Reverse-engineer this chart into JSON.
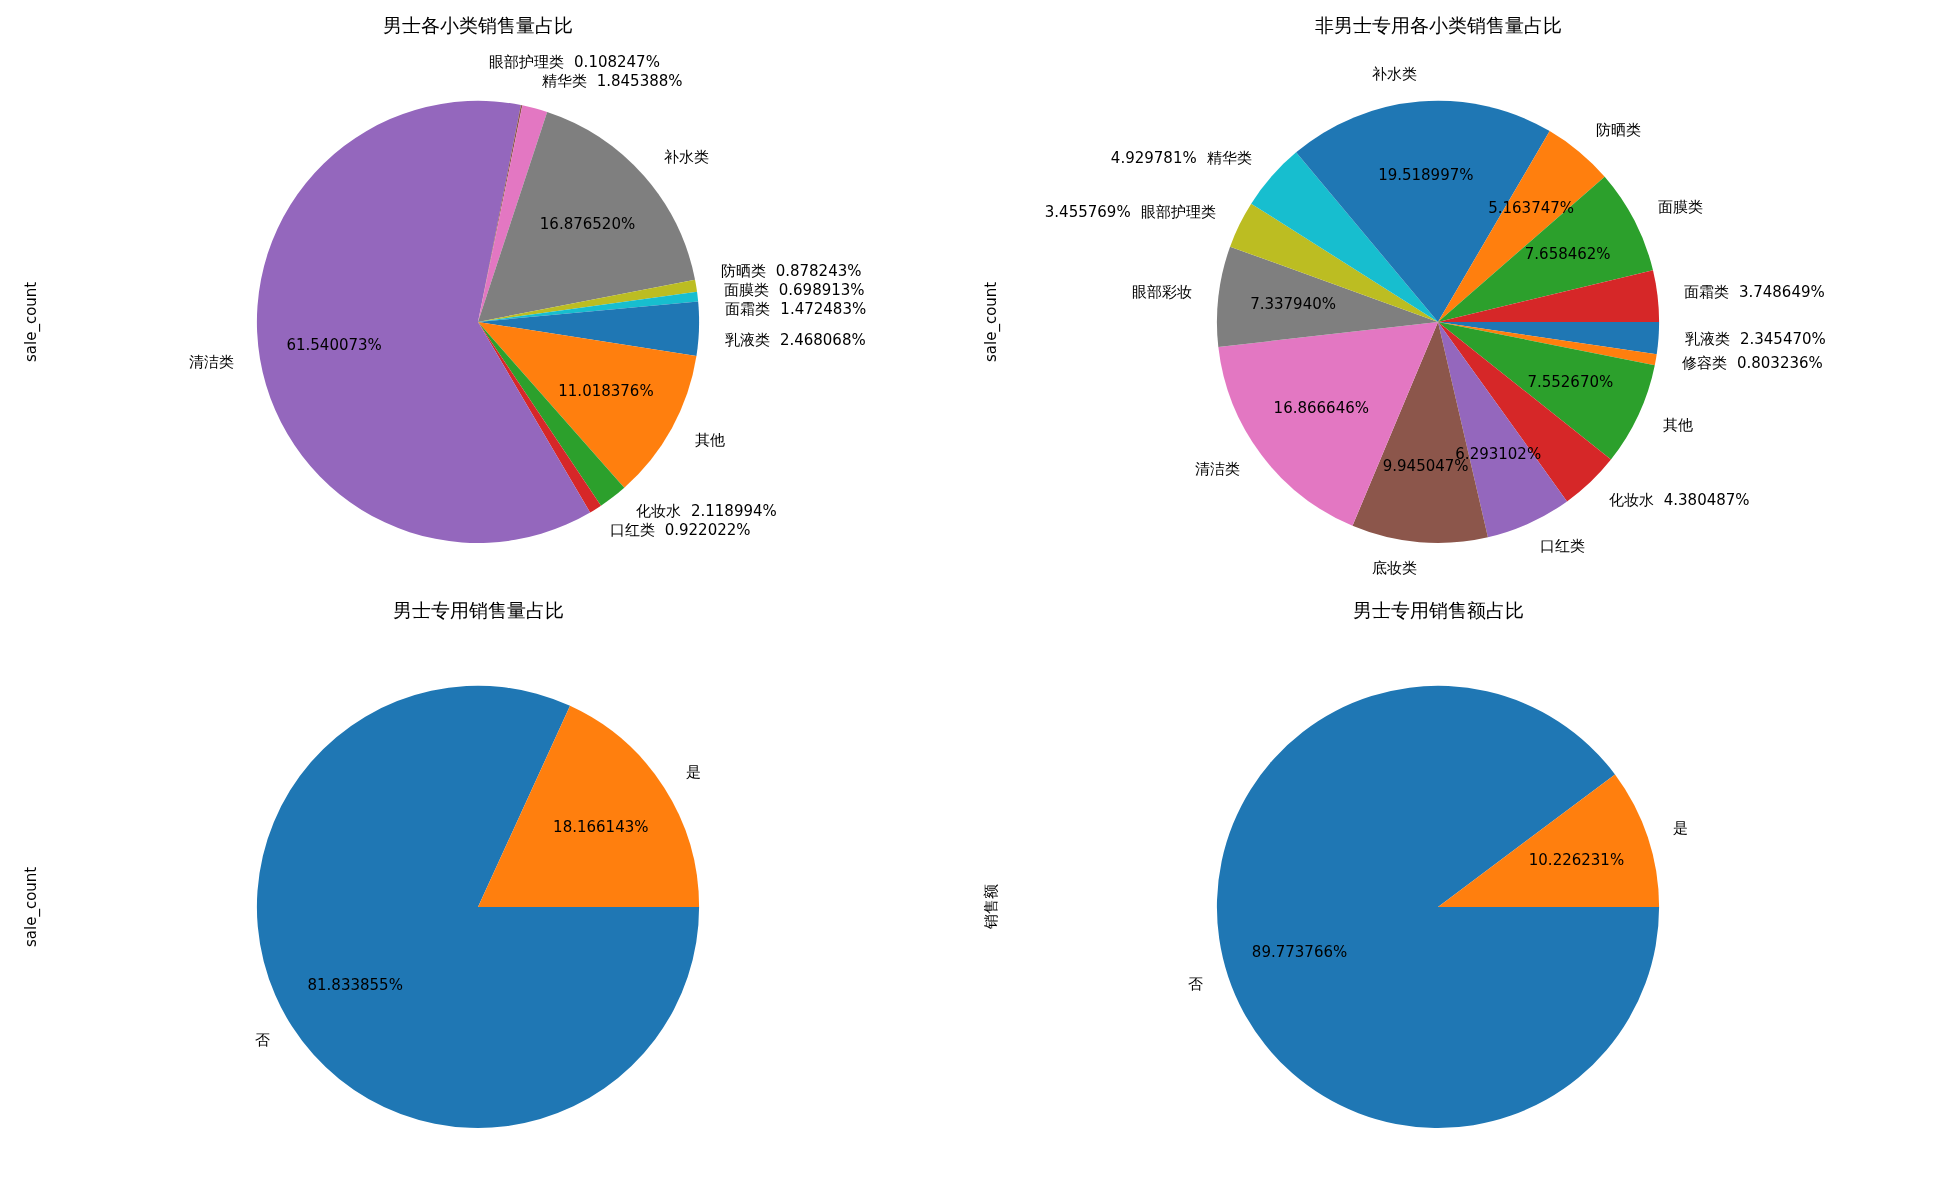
{
  "chart_data": [
    {
      "type": "pie",
      "title": "男士各小类销售量占比",
      "ylabel": "sale_count",
      "categories": [
        "乳液类",
        "其他",
        "化妆水",
        "口红类",
        "清洁类",
        "眼部护理类",
        "精华类",
        "补水类",
        "防晒类",
        "面膜类",
        "面霜类"
      ],
      "values": [
        2.468068,
        11.018376,
        2.118994,
        0.922022,
        61.540073,
        0.108247,
        1.845388,
        16.87652,
        0.878243,
        0.698913,
        1.472483
      ],
      "value_labels": [
        "2.468068%",
        "11.018376%",
        "2.118994%",
        "0.922022%",
        "61.540073%",
        "0.108247%",
        "1.845388%",
        "16.876520%",
        "0.878243%",
        "0.698913%",
        "1.472483%"
      ],
      "colors": [
        "#1f77b4",
        "#ff7f0e",
        "#2ca02c",
        "#d62728",
        "#9467bd",
        "#8c564b",
        "#e377c2",
        "#7f7f7f",
        "#bcbd22",
        "#17becf",
        "#1f77b4"
      ]
    },
    {
      "type": "pie",
      "title": "非男士专用各小类销售量占比",
      "ylabel": "sale_count",
      "categories": [
        "乳液类",
        "修容类",
        "其他",
        "化妆水",
        "口红类",
        "底妆类",
        "清洁类",
        "眼部彩妆",
        "眼部护理类",
        "精华类",
        "补水类",
        "防晒类",
        "面膜类",
        "面霜类"
      ],
      "values": [
        2.34547,
        0.803236,
        7.55267,
        4.380487,
        6.293102,
        9.945047,
        16.866646,
        7.33794,
        3.455769,
        4.929781,
        19.518997,
        5.163747,
        7.658462,
        3.748649
      ],
      "value_labels": [
        "2.345470%",
        "0.803236%",
        "7.552670%",
        "4.380487%",
        "6.293102%",
        "9.945047%",
        "16.866646%",
        "7.337940%",
        "3.455769%",
        "4.929781%",
        "19.518997%",
        "5.163747%",
        "7.658462%",
        "3.748649%"
      ],
      "colors": [
        "#1f77b4",
        "#ff7f0e",
        "#2ca02c",
        "#d62728",
        "#9467bd",
        "#8c564b",
        "#e377c2",
        "#7f7f7f",
        "#bcbd22",
        "#17becf",
        "#1f77b4",
        "#ff7f0e",
        "#2ca02c",
        "#d62728"
      ]
    },
    {
      "type": "pie",
      "title": "男士专用销售量占比",
      "ylabel": "sale_count",
      "categories": [
        "否",
        "是"
      ],
      "values": [
        81.833855,
        18.166143
      ],
      "value_labels": [
        "81.833855%",
        "18.166143%"
      ],
      "colors": [
        "#1f77b4",
        "#ff7f0e"
      ]
    },
    {
      "type": "pie",
      "title": "男士专用销售额占比",
      "ylabel": "销售额",
      "categories": [
        "否",
        "是"
      ],
      "values": [
        89.773766,
        10.226231
      ],
      "value_labels": [
        "89.773766%",
        "10.226231%"
      ],
      "colors": [
        "#1f77b4",
        "#ff7f0e"
      ]
    }
  ]
}
